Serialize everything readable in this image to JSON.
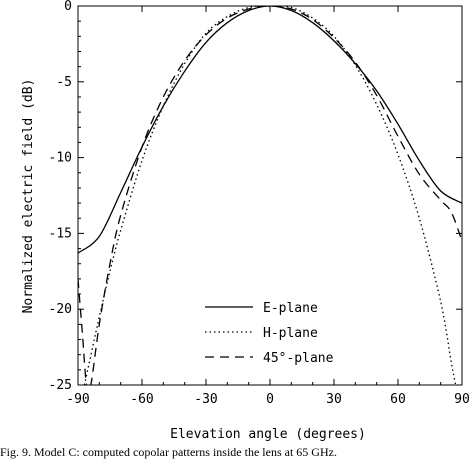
{
  "caption": "Fig. 9.   Model C: computed copolar patterns inside the lens at 65 GHz.",
  "chart_data": {
    "type": "line",
    "title": "",
    "xlabel": "Elevation angle (degrees)",
    "ylabel": "Normalized electric field (dB)",
    "xlim": [
      -90,
      90
    ],
    "ylim": [
      -25,
      0
    ],
    "xticks": [
      -90,
      -60,
      -30,
      0,
      30,
      60,
      90
    ],
    "yticks": [
      0,
      -5,
      -10,
      -15,
      -20,
      -25
    ],
    "grid": false,
    "legend": "bottom-center",
    "series": [
      {
        "name": "E-plane",
        "style": "solid",
        "x": [
          -90,
          -80,
          -70,
          -60,
          -50,
          -40,
          -30,
          -20,
          -10,
          0,
          10,
          20,
          30,
          40,
          50,
          60,
          70,
          80,
          90
        ],
        "y": [
          -16.3,
          -15.2,
          -12.3,
          -9.3,
          -6.6,
          -4.3,
          -2.4,
          -1.1,
          -0.3,
          0,
          -0.3,
          -1.1,
          -2.3,
          -3.8,
          -5.6,
          -7.8,
          -10.2,
          -12.2,
          -13.0
        ]
      },
      {
        "name": "H-plane",
        "style": "dotted",
        "x": [
          -87,
          -85,
          -80,
          -75,
          -70,
          -60,
          -50,
          -40,
          -30,
          -20,
          -10,
          0,
          10,
          20,
          30,
          40,
          50,
          60,
          70,
          80,
          85,
          87
        ],
        "y": [
          -25,
          -23.7,
          -20.5,
          -17.5,
          -14.8,
          -10.2,
          -6.6,
          -3.8,
          -1.8,
          -0.7,
          -0.1,
          0,
          -0.1,
          -0.8,
          -2.0,
          -3.9,
          -6.5,
          -9.8,
          -14.0,
          -19.5,
          -23.5,
          -25
        ]
      },
      {
        "name": "45°-plane",
        "style": "dashed",
        "x": [
          -90,
          -88,
          -86,
          -84,
          -80,
          -75,
          -70,
          -60,
          -50,
          -40,
          -30,
          -20,
          -10,
          0,
          10,
          20,
          30,
          40,
          50,
          60,
          70,
          80,
          85,
          90
        ],
        "y": [
          -18.0,
          -21.5,
          -25,
          -25,
          -21.0,
          -17.0,
          -13.8,
          -9.3,
          -6.0,
          -3.6,
          -1.9,
          -0.8,
          -0.2,
          0,
          -0.2,
          -0.9,
          -2.1,
          -3.7,
          -5.9,
          -8.6,
          -11.1,
          -12.8,
          -13.6,
          -15.5
        ]
      }
    ]
  }
}
